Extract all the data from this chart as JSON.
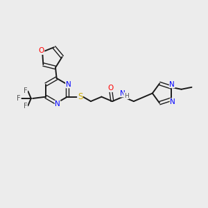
{
  "bg_color": "#ececec",
  "bond_color": "#1a1a1a",
  "atom_colors": {
    "O": "#ff0000",
    "N": "#0000ff",
    "S": "#ccaa00",
    "F": "#555555",
    "C": "#1a1a1a",
    "H": "#555555"
  },
  "figsize": [
    3.0,
    3.0
  ],
  "dpi": 100
}
